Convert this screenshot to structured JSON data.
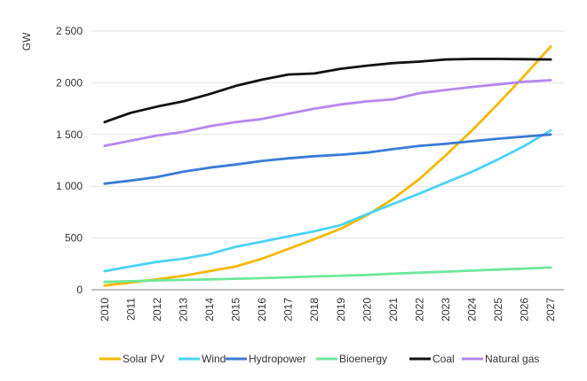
{
  "chart_data": {
    "type": "line",
    "title": "",
    "xlabel": "",
    "ylabel": "GW",
    "ylim": [
      0,
      2500
    ],
    "yticks": [
      0,
      500,
      1000,
      1500,
      2000,
      2500
    ],
    "ytick_labels": [
      "0",
      "500",
      "1 000",
      "1 500",
      "2 000",
      "2 500"
    ],
    "grid": true,
    "legend_position": "bottom",
    "x": [
      "2010",
      "2011",
      "2012",
      "2013",
      "2014",
      "2015",
      "2016",
      "2017",
      "2018",
      "2019",
      "2020",
      "2021",
      "2022",
      "2023",
      "2024",
      "2025",
      "2026",
      "2027"
    ],
    "series": [
      {
        "name": "Solar PV",
        "color": "#f5b800",
        "values": [
          40,
          70,
          100,
          135,
          180,
          225,
          300,
          395,
          490,
          590,
          720,
          880,
          1070,
          1300,
          1540,
          1800,
          2070,
          2350
        ]
      },
      {
        "name": "Wind",
        "color": "#4dd2f5",
        "values": [
          180,
          225,
          270,
          300,
          345,
          415,
          465,
          515,
          565,
          625,
          730,
          830,
          930,
          1035,
          1140,
          1260,
          1390,
          1540
        ]
      },
      {
        "name": "Hydropower",
        "color": "#3a7bd5",
        "values": [
          1025,
          1055,
          1090,
          1140,
          1180,
          1210,
          1245,
          1270,
          1290,
          1305,
          1325,
          1360,
          1390,
          1410,
          1435,
          1460,
          1480,
          1500
        ]
      },
      {
        "name": "Bioenergy",
        "color": "#6ee89a",
        "values": [
          75,
          82,
          90,
          95,
          100,
          106,
          112,
          120,
          128,
          135,
          143,
          155,
          165,
          175,
          185,
          195,
          205,
          215
        ]
      },
      {
        "name": "Coal",
        "color": "#111111",
        "values": [
          1620,
          1710,
          1770,
          1820,
          1890,
          1970,
          2030,
          2080,
          2090,
          2135,
          2165,
          2190,
          2205,
          2225,
          2230,
          2230,
          2228,
          2225
        ]
      },
      {
        "name": "Natural gas",
        "color": "#b388f0",
        "values": [
          1390,
          1440,
          1490,
          1525,
          1580,
          1620,
          1650,
          1700,
          1750,
          1790,
          1820,
          1840,
          1900,
          1930,
          1960,
          1985,
          2010,
          2025
        ]
      }
    ]
  }
}
